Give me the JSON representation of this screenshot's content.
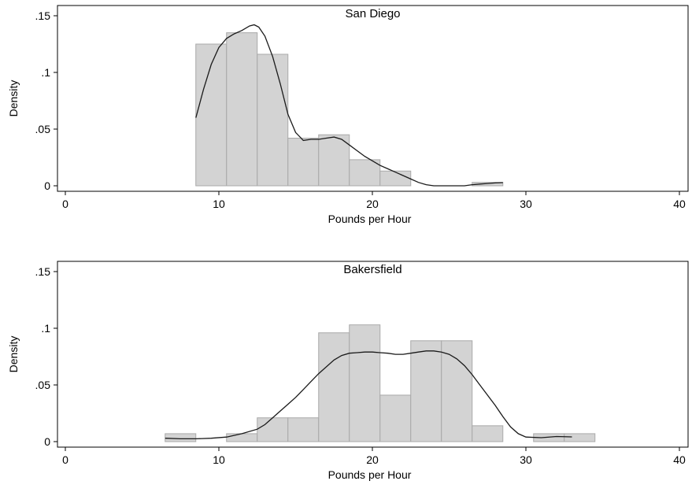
{
  "chart_data": [
    {
      "type": "histogram",
      "title": "San Diego",
      "xlabel": "Pounds per Hour",
      "ylabel": "Density",
      "xlim": [
        0,
        40
      ],
      "ylim": [
        0,
        0.15
      ],
      "xticks": [
        0,
        10,
        20,
        30,
        40
      ],
      "xtick_labels": [
        "0",
        "10",
        "20",
        "30",
        "40"
      ],
      "yticks": [
        0,
        0.05,
        0.1,
        0.15
      ],
      "ytick_labels": [
        "0",
        ".05",
        ".1",
        ".15"
      ],
      "grid": false,
      "bars": [
        {
          "x0": 8.5,
          "x1": 10.5,
          "value": 0.125
        },
        {
          "x0": 10.5,
          "x1": 12.5,
          "value": 0.135
        },
        {
          "x0": 12.5,
          "x1": 14.5,
          "value": 0.116
        },
        {
          "x0": 14.5,
          "x1": 16.5,
          "value": 0.042
        },
        {
          "x0": 16.5,
          "x1": 18.5,
          "value": 0.045
        },
        {
          "x0": 18.5,
          "x1": 20.5,
          "value": 0.023
        },
        {
          "x0": 20.5,
          "x1": 22.5,
          "value": 0.013
        },
        {
          "x0": 26.5,
          "x1": 28.5,
          "value": 0.003
        }
      ],
      "density_curve": [
        [
          8.5,
          0.06
        ],
        [
          9.0,
          0.085
        ],
        [
          9.5,
          0.107
        ],
        [
          10.0,
          0.122
        ],
        [
          10.5,
          0.13
        ],
        [
          11.0,
          0.134
        ],
        [
          11.5,
          0.137
        ],
        [
          12.0,
          0.141
        ],
        [
          12.3,
          0.142
        ],
        [
          12.6,
          0.14
        ],
        [
          13.0,
          0.132
        ],
        [
          13.5,
          0.114
        ],
        [
          14.0,
          0.09
        ],
        [
          14.5,
          0.063
        ],
        [
          15.0,
          0.047
        ],
        [
          15.5,
          0.04
        ],
        [
          16.0,
          0.041
        ],
        [
          16.5,
          0.041
        ],
        [
          17.0,
          0.042
        ],
        [
          17.5,
          0.043
        ],
        [
          18.0,
          0.041
        ],
        [
          18.5,
          0.036
        ],
        [
          19.0,
          0.031
        ],
        [
          19.5,
          0.026
        ],
        [
          20.0,
          0.022
        ],
        [
          20.5,
          0.018
        ],
        [
          21.0,
          0.015
        ],
        [
          21.5,
          0.012
        ],
        [
          22.0,
          0.009
        ],
        [
          22.5,
          0.006
        ],
        [
          23.0,
          0.003
        ],
        [
          23.5,
          0.001
        ],
        [
          24.0,
          0.0
        ],
        [
          25.0,
          0.0
        ],
        [
          26.0,
          0.0
        ],
        [
          26.5,
          0.001
        ],
        [
          27.0,
          0.0015
        ],
        [
          27.5,
          0.002
        ],
        [
          28.0,
          0.0025
        ],
        [
          28.5,
          0.0028
        ]
      ]
    },
    {
      "type": "histogram",
      "title": "Bakersfield",
      "xlabel": "Pounds per Hour",
      "ylabel": "Density",
      "xlim": [
        0,
        40
      ],
      "ylim": [
        0,
        0.15
      ],
      "xticks": [
        0,
        10,
        20,
        30,
        40
      ],
      "xtick_labels": [
        "0",
        "10",
        "20",
        "30",
        "40"
      ],
      "yticks": [
        0,
        0.05,
        0.1,
        0.15
      ],
      "ytick_labels": [
        "0",
        ".05",
        ".1",
        ".15"
      ],
      "grid": false,
      "bars": [
        {
          "x0": 6.5,
          "x1": 8.5,
          "value": 0.007
        },
        {
          "x0": 10.5,
          "x1": 12.5,
          "value": 0.007
        },
        {
          "x0": 12.5,
          "x1": 14.5,
          "value": 0.021
        },
        {
          "x0": 14.5,
          "x1": 16.5,
          "value": 0.021
        },
        {
          "x0": 16.5,
          "x1": 18.5,
          "value": 0.096
        },
        {
          "x0": 18.5,
          "x1": 20.5,
          "value": 0.103
        },
        {
          "x0": 20.5,
          "x1": 22.5,
          "value": 0.041
        },
        {
          "x0": 22.5,
          "x1": 24.5,
          "value": 0.089
        },
        {
          "x0": 24.5,
          "x1": 26.5,
          "value": 0.089
        },
        {
          "x0": 26.5,
          "x1": 28.5,
          "value": 0.014
        },
        {
          "x0": 30.5,
          "x1": 32.5,
          "value": 0.007
        },
        {
          "x0": 32.5,
          "x1": 34.5,
          "value": 0.007
        }
      ],
      "density_curve": [
        [
          6.5,
          0.003
        ],
        [
          7.5,
          0.0025
        ],
        [
          8.5,
          0.0025
        ],
        [
          9.5,
          0.003
        ],
        [
          10.5,
          0.004
        ],
        [
          11.5,
          0.007
        ],
        [
          12.5,
          0.011
        ],
        [
          13.0,
          0.015
        ],
        [
          13.5,
          0.021
        ],
        [
          14.0,
          0.027
        ],
        [
          14.5,
          0.033
        ],
        [
          15.0,
          0.039
        ],
        [
          15.5,
          0.046
        ],
        [
          16.0,
          0.053
        ],
        [
          16.5,
          0.06
        ],
        [
          17.0,
          0.066
        ],
        [
          17.5,
          0.072
        ],
        [
          18.0,
          0.076
        ],
        [
          18.5,
          0.078
        ],
        [
          19.0,
          0.0785
        ],
        [
          19.5,
          0.079
        ],
        [
          20.0,
          0.079
        ],
        [
          20.5,
          0.0785
        ],
        [
          21.0,
          0.078
        ],
        [
          21.5,
          0.077
        ],
        [
          22.0,
          0.077
        ],
        [
          22.5,
          0.078
        ],
        [
          23.0,
          0.079
        ],
        [
          23.5,
          0.08
        ],
        [
          24.0,
          0.08
        ],
        [
          24.5,
          0.079
        ],
        [
          25.0,
          0.077
        ],
        [
          25.5,
          0.073
        ],
        [
          26.0,
          0.067
        ],
        [
          26.5,
          0.059
        ],
        [
          27.0,
          0.05
        ],
        [
          27.5,
          0.041
        ],
        [
          28.0,
          0.032
        ],
        [
          28.5,
          0.022
        ],
        [
          29.0,
          0.013
        ],
        [
          29.5,
          0.007
        ],
        [
          30.0,
          0.004
        ],
        [
          31.0,
          0.0035
        ],
        [
          32.0,
          0.0045
        ],
        [
          33.0,
          0.0042
        ]
      ]
    }
  ]
}
